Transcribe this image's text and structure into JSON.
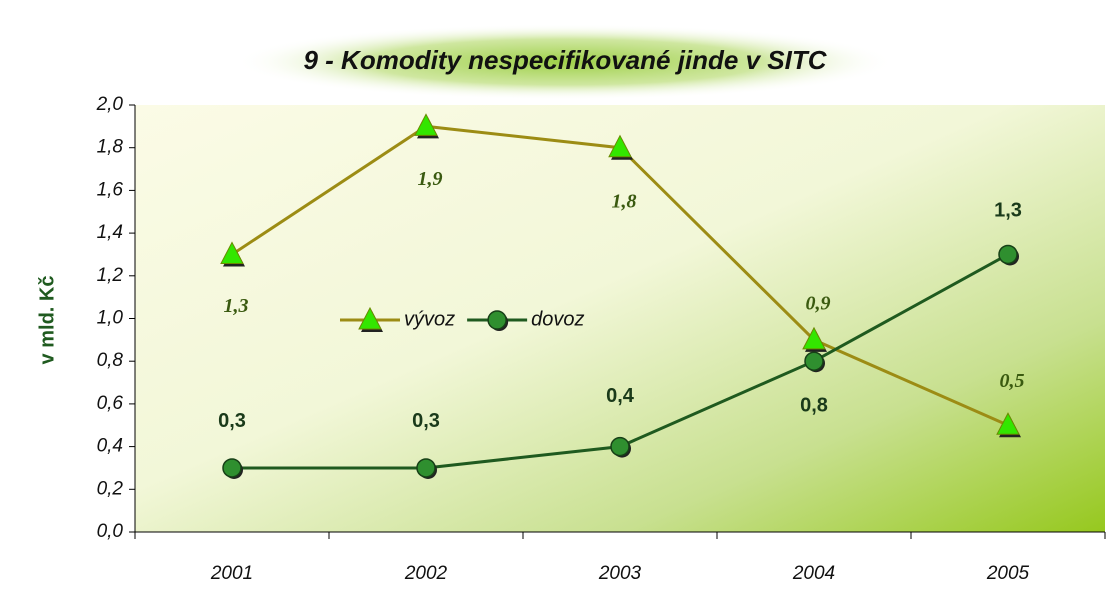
{
  "chart_data": {
    "type": "line",
    "title": "9  - Komodity nespecifikované jinde v SITC",
    "y_label": "v mld. Kč",
    "categories": [
      "2001",
      "2002",
      "2003",
      "2004",
      "2005"
    ],
    "series": [
      {
        "name": "vývoz",
        "color": "#9c8c14",
        "marker_color": "#33e600",
        "marker": "triangle",
        "values": [
          1.3,
          1.9,
          1.8,
          0.9,
          0.5
        ],
        "value_labels": [
          "1,3",
          "1,9",
          "1,8",
          "0,9",
          "0,5"
        ]
      },
      {
        "name": "dovoz",
        "color": "#1f5a1f",
        "marker_color": "#2f8f2f",
        "marker": "circle",
        "values": [
          0.3,
          0.3,
          0.4,
          0.8,
          1.3
        ],
        "value_labels": [
          "0,3",
          "0,3",
          "0,4",
          "0,8",
          "1,3"
        ]
      }
    ],
    "ylim": [
      0,
      2
    ],
    "yticks": [
      {
        "value": 0,
        "label": "0,0"
      },
      {
        "value": 0.2,
        "label": "0,2"
      },
      {
        "value": 0.4,
        "label": "0,4"
      },
      {
        "value": 0.6,
        "label": "0,6"
      },
      {
        "value": 0.8,
        "label": "0,8"
      },
      {
        "value": 1,
        "label": "1,0"
      },
      {
        "value": 1.2,
        "label": "1,2"
      },
      {
        "value": 1.4,
        "label": "1,4"
      },
      {
        "value": 1.6,
        "label": "1,6"
      },
      {
        "value": 1.8,
        "label": "1,8"
      },
      {
        "value": 2,
        "label": "2,0"
      }
    ],
    "legend": "center"
  }
}
